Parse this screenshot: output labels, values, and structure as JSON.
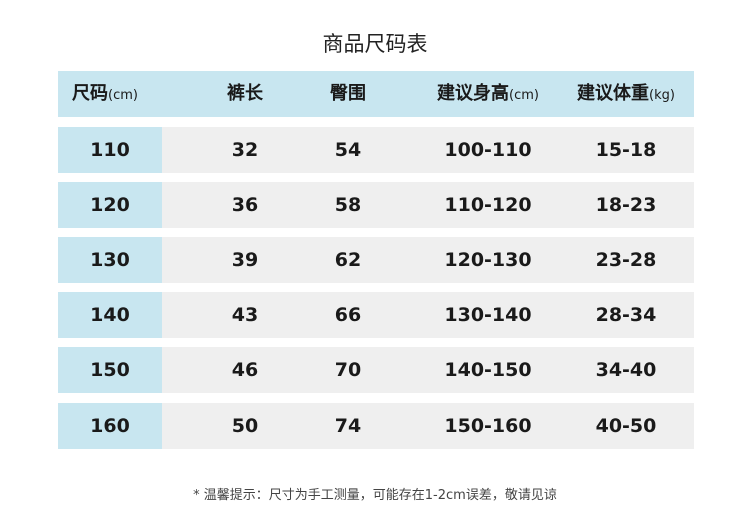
{
  "title": "商品尺码表",
  "headers": [
    {
      "label": "尺码",
      "unit": "(cm)"
    },
    {
      "label": "裤长",
      "unit": ""
    },
    {
      "label": "臀围",
      "unit": ""
    },
    {
      "label": "建议身高",
      "unit": "(cm)"
    },
    {
      "label": "建议体重",
      "unit": "(kg)"
    }
  ],
  "rows": [
    [
      "110",
      "32",
      "54",
      "100-110",
      "15-18"
    ],
    [
      "120",
      "36",
      "58",
      "110-120",
      "18-23"
    ],
    [
      "130",
      "39",
      "62",
      "120-130",
      "23-28"
    ],
    [
      "140",
      "43",
      "66",
      "130-140",
      "28-34"
    ],
    [
      "150",
      "46",
      "70",
      "140-150",
      "34-40"
    ],
    [
      "160",
      "50",
      "74",
      "150-160",
      "40-50"
    ]
  ],
  "note": "* 温馨提示：尺寸为手工测量，可能存在1-2cm误差，敬请见谅",
  "colors": {
    "header_bg": "#c8e6f0",
    "row_bg": "#efefef"
  }
}
